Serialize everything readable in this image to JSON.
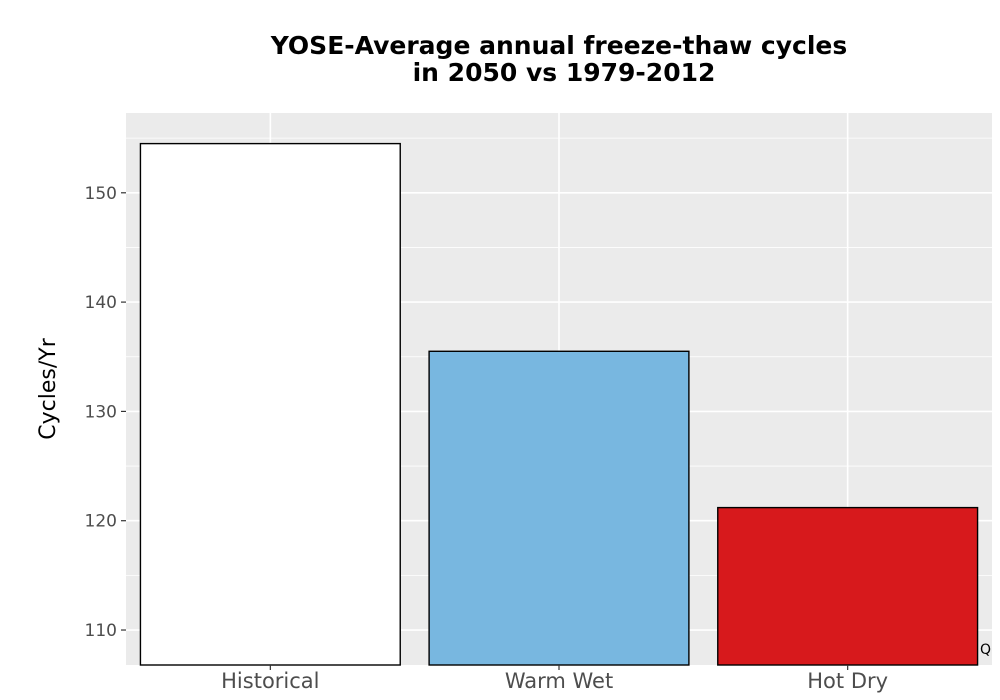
{
  "chart_data": {
    "type": "bar",
    "title_lines": [
      "YOSE-Average annual freeze-thaw cycles",
      "in 2050 vs 1979-2012"
    ],
    "xlabel": "",
    "ylabel": "Cycles/Yr",
    "categories": [
      "Historical",
      "Warm Wet",
      "Hot Dry"
    ],
    "values": [
      154.5,
      135.5,
      121.2
    ],
    "colors": [
      "#ffffff",
      "#78b7e0",
      "#d7191c"
    ],
    "bar_outline": "#000000",
    "ylim": [
      106.8,
      157.3
    ],
    "yticks": [
      110,
      120,
      130,
      140,
      150
    ],
    "grid": true,
    "panel_background": "#ebebeb",
    "grid_color": "#ffffff",
    "corner_mark": "Q"
  }
}
